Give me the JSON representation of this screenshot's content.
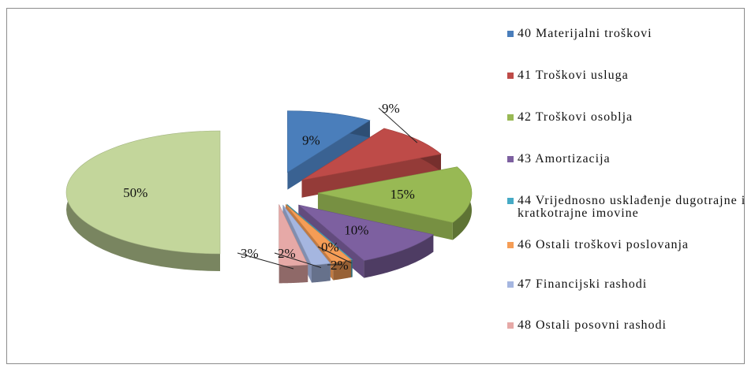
{
  "chart_data": {
    "type": "pie",
    "title": "",
    "style": "3d-exploded",
    "slices": [
      {
        "name": "40 Materijalni troškovi",
        "value": 9,
        "label": "9%",
        "color": "#4a7ebb"
      },
      {
        "name": "41 Troškovi usluga",
        "value": 9,
        "label": "9%",
        "color": "#be4b48"
      },
      {
        "name": "42 Troškovi osoblja",
        "value": 15,
        "label": "15%",
        "color": "#98b954"
      },
      {
        "name": "43 Amortizacija",
        "value": 10,
        "label": "10%",
        "color": "#7d60a0"
      },
      {
        "name": "44 Vrijednosno usklađenje dugotrajne i kratkotrajne imovine",
        "value": 0,
        "label": "0%",
        "color": "#46aac5"
      },
      {
        "name": "46 Ostali troškovi poslovanja",
        "value": 2,
        "label": "2%",
        "color": "#f59d56"
      },
      {
        "name": "47 Financijski rashodi",
        "value": 2,
        "label": "2%",
        "color": "#a5b6e0"
      },
      {
        "name": "48 Ostali posovni rashodi",
        "value": 3,
        "label": "3%",
        "color": "#e6a9a7"
      },
      {
        "name": "",
        "value": 50,
        "label": "50%",
        "color": "#c3d69b"
      }
    ],
    "legend": {
      "placement": "right",
      "items": [
        {
          "label": "40 Materijalni troškovi",
          "color": "#4a7ebb"
        },
        {
          "label": "41 Troškovi usluga",
          "color": "#be4b48"
        },
        {
          "label": "42 Troškovi osoblja",
          "color": "#98b954"
        },
        {
          "label": "43 Amortizacija",
          "color": "#7d60a0"
        },
        {
          "label": "44 Vrijednosno usklađenje dugotrajne i kratkotrajne imovine",
          "color": "#46aac5"
        },
        {
          "label": "46 Ostali troškovi poslovanja",
          "color": "#f59d56"
        },
        {
          "label": "47 Financijski rashodi",
          "color": "#a5b6e0"
        },
        {
          "label": "48 Ostali posovni rashodi",
          "color": "#e6a9a7"
        }
      ]
    }
  }
}
